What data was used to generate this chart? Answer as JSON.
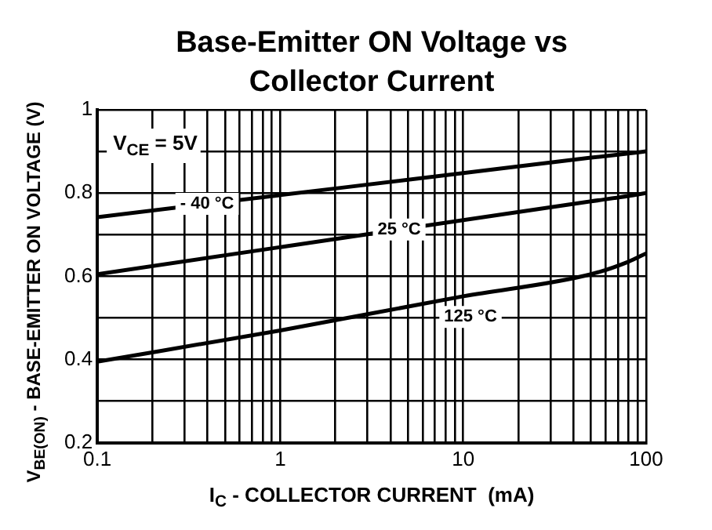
{
  "chart_data": {
    "type": "line",
    "title": "Base-Emitter ON Voltage vs Collector Current",
    "xlabel": "I$_{C}$ - COLLECTOR CURRENT  (mA)",
    "ylabel": "V$_{BE(ON)}$ - BASE-EMITTER ON VOLTAGE (V)",
    "annotations": [
      "V$_{CE}$ = 5V"
    ],
    "log": "x",
    "grid": true,
    "legend": false,
    "marker": "none",
    "line_style": "solid",
    "xlim": [
      0.1,
      100
    ],
    "ylim": [
      0.2,
      1
    ],
    "xticks": [
      0.1,
      {
        "value": 0.2,
        "label": null
      },
      {
        "value": 0.3,
        "label": null
      },
      {
        "value": 0.4,
        "label": null
      },
      {
        "value": 0.5,
        "label": null
      },
      {
        "value": 0.6,
        "label": null
      },
      {
        "value": 0.7,
        "label": null
      },
      {
        "value": 0.8,
        "label": null
      },
      {
        "value": 0.9,
        "label": null
      },
      1,
      {
        "value": 2,
        "label": null
      },
      {
        "value": 3,
        "label": null
      },
      {
        "value": 4,
        "label": null
      },
      {
        "value": 5,
        "label": null
      },
      {
        "value": 6,
        "label": null
      },
      {
        "value": 7,
        "label": null
      },
      {
        "value": 8,
        "label": null
      },
      {
        "value": 9,
        "label": null
      },
      10,
      {
        "value": 20,
        "label": null
      },
      {
        "value": 30,
        "label": null
      },
      {
        "value": 40,
        "label": null
      },
      {
        "value": 50,
        "label": null
      },
      {
        "value": 60,
        "label": null
      },
      {
        "value": 70,
        "label": null
      },
      {
        "value": 80,
        "label": null
      },
      {
        "value": 90,
        "label": null
      },
      100
    ],
    "yticks": [
      0.2,
      {
        "value": 0.3,
        "label": null
      },
      0.4,
      {
        "value": 0.5,
        "label": null
      },
      0.6,
      {
        "value": 0.7,
        "label": null
      },
      0.8,
      {
        "value": 0.9,
        "label": null
      },
      1
    ],
    "x": [
      0.1,
      1,
      10,
      50,
      80,
      100
    ],
    "series": [
      {
        "name": "- 40 °C",
        "color": "#000000",
        "values": [
          0.742,
          0.795,
          0.848,
          0.885,
          0.895,
          0.9
        ]
      },
      {
        "name": "25 °C",
        "color": "#000000",
        "values": [
          0.605,
          0.67,
          0.735,
          0.78,
          0.793,
          0.8
        ]
      },
      {
        "name": "125 °C",
        "color": "#000000",
        "values": [
          0.395,
          0.47,
          0.552,
          0.605,
          0.635,
          0.655
        ]
      }
    ]
  }
}
